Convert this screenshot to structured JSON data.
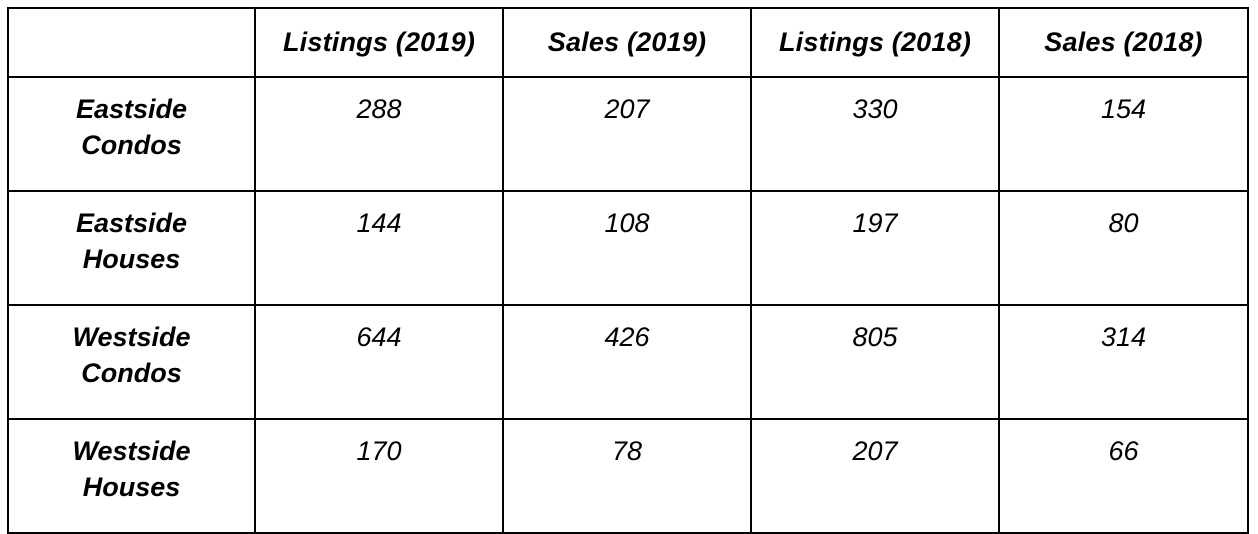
{
  "table": {
    "corner": "",
    "headers": [
      "Listings (2019)",
      "Sales (2019)",
      "Listings (2018)",
      "Sales (2018)"
    ],
    "rows": [
      {
        "label_line1": "Eastside",
        "label_line2": "Condos",
        "values": [
          "288",
          "207",
          "330",
          "154"
        ]
      },
      {
        "label_line1": "Eastside",
        "label_line2": "Houses",
        "values": [
          "144",
          "108",
          "197",
          "80"
        ]
      },
      {
        "label_line1": "Westside",
        "label_line2": "Condos",
        "values": [
          "644",
          "426",
          "805",
          "314"
        ]
      },
      {
        "label_line1": "Westside",
        "label_line2": "Houses",
        "values": [
          "170",
          "78",
          "207",
          "66"
        ]
      }
    ]
  }
}
